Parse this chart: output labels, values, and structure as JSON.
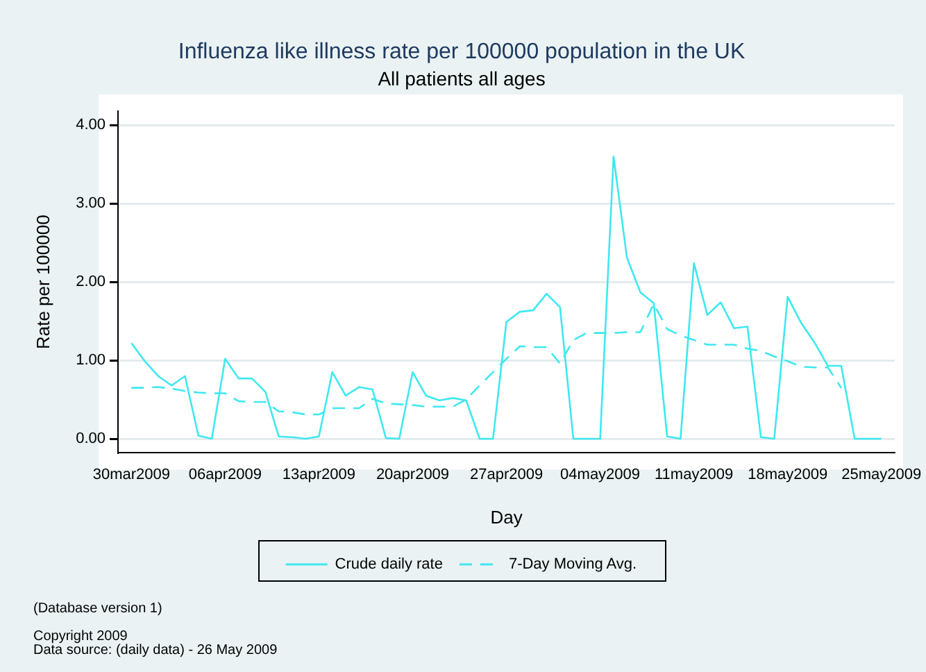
{
  "chart_data": {
    "type": "line",
    "title": "Influenza like illness rate per 100000 population in the UK",
    "subtitle": "All patients all ages",
    "xlabel": "Day",
    "ylabel": "Rate per 100000",
    "x": [
      "2009-03-30",
      "2009-03-31",
      "2009-04-01",
      "2009-04-02",
      "2009-04-03",
      "2009-04-04",
      "2009-04-05",
      "2009-04-06",
      "2009-04-07",
      "2009-04-08",
      "2009-04-09",
      "2009-04-10",
      "2009-04-11",
      "2009-04-12",
      "2009-04-13",
      "2009-04-14",
      "2009-04-15",
      "2009-04-16",
      "2009-04-17",
      "2009-04-18",
      "2009-04-19",
      "2009-04-20",
      "2009-04-21",
      "2009-04-22",
      "2009-04-23",
      "2009-04-24",
      "2009-04-25",
      "2009-04-26",
      "2009-04-27",
      "2009-04-28",
      "2009-04-29",
      "2009-04-30",
      "2009-05-01",
      "2009-05-02",
      "2009-05-03",
      "2009-05-04",
      "2009-05-05",
      "2009-05-06",
      "2009-05-07",
      "2009-05-08",
      "2009-05-09",
      "2009-05-10",
      "2009-05-11",
      "2009-05-12",
      "2009-05-13",
      "2009-05-14",
      "2009-05-15",
      "2009-05-16",
      "2009-05-17",
      "2009-05-18",
      "2009-05-19",
      "2009-05-20",
      "2009-05-21",
      "2009-05-22",
      "2009-05-23",
      "2009-05-24",
      "2009-05-25"
    ],
    "series": [
      {
        "name": "Crude daily rate",
        "color": "#3ee8f0",
        "line_style": "solid",
        "values": [
          1.22,
          0.99,
          0.8,
          0.68,
          0.8,
          0.04,
          0.0,
          1.02,
          0.77,
          0.77,
          0.6,
          0.03,
          0.02,
          0.0,
          0.03,
          0.85,
          0.55,
          0.66,
          0.63,
          0.01,
          0.0,
          0.85,
          0.55,
          0.49,
          0.52,
          0.49,
          0.0,
          0.0,
          1.49,
          1.62,
          1.64,
          1.85,
          1.68,
          0.0,
          0.0,
          0.0,
          3.6,
          2.31,
          1.87,
          1.73,
          0.03,
          0.0,
          2.24,
          1.58,
          1.74,
          1.41,
          1.43,
          0.02,
          0.0,
          1.81,
          1.48,
          1.23,
          0.93,
          0.93,
          0.0,
          0.0,
          0.0
        ]
      },
      {
        "name": "7-Day Moving Avg.",
        "color": "#3ee8f0",
        "line_style": "dashed",
        "values": [
          0.65,
          0.65,
          0.66,
          0.64,
          0.61,
          0.59,
          0.58,
          0.58,
          0.48,
          0.47,
          0.47,
          0.35,
          0.34,
          0.31,
          0.31,
          0.39,
          0.39,
          0.39,
          0.51,
          0.45,
          0.44,
          0.43,
          0.41,
          0.41,
          0.41,
          0.5,
          0.68,
          0.85,
          1.02,
          1.18,
          1.17,
          1.17,
          0.96,
          1.26,
          1.35,
          1.35,
          1.35,
          1.36,
          1.36,
          1.72,
          1.4,
          1.32,
          1.26,
          1.2,
          1.2,
          1.2,
          1.15,
          1.12,
          1.05,
          0.99,
          0.92,
          0.91,
          0.91,
          0.65,
          null,
          null,
          null
        ]
      }
    ],
    "xlim": [
      "2009-03-29",
      "2009-05-26"
    ],
    "xticks": [
      {
        "value": "2009-03-30",
        "label": "30mar2009"
      },
      {
        "value": "2009-04-06",
        "label": "06apr2009"
      },
      {
        "value": "2009-04-13",
        "label": "13apr2009"
      },
      {
        "value": "2009-04-20",
        "label": "20apr2009"
      },
      {
        "value": "2009-04-27",
        "label": "27apr2009"
      },
      {
        "value": "2009-05-04",
        "label": "04may2009"
      },
      {
        "value": "2009-05-11",
        "label": "11may2009"
      },
      {
        "value": "2009-05-18",
        "label": "18may2009"
      },
      {
        "value": "2009-05-25",
        "label": "25may2009"
      }
    ],
    "ylim": [
      -0.18,
      4.18
    ],
    "yticks": [
      {
        "value": 0,
        "label": "0.00"
      },
      {
        "value": 1,
        "label": "1.00"
      },
      {
        "value": 2,
        "label": "2.00"
      },
      {
        "value": 3,
        "label": "3.00"
      },
      {
        "value": 4,
        "label": "4.00"
      }
    ],
    "grid": "y",
    "legend": "bottom",
    "marker": "none",
    "annotations": [
      "(Database version 1)",
      "Copyright 2009",
      "Data source: (daily data) - 26 May 2009"
    ]
  }
}
